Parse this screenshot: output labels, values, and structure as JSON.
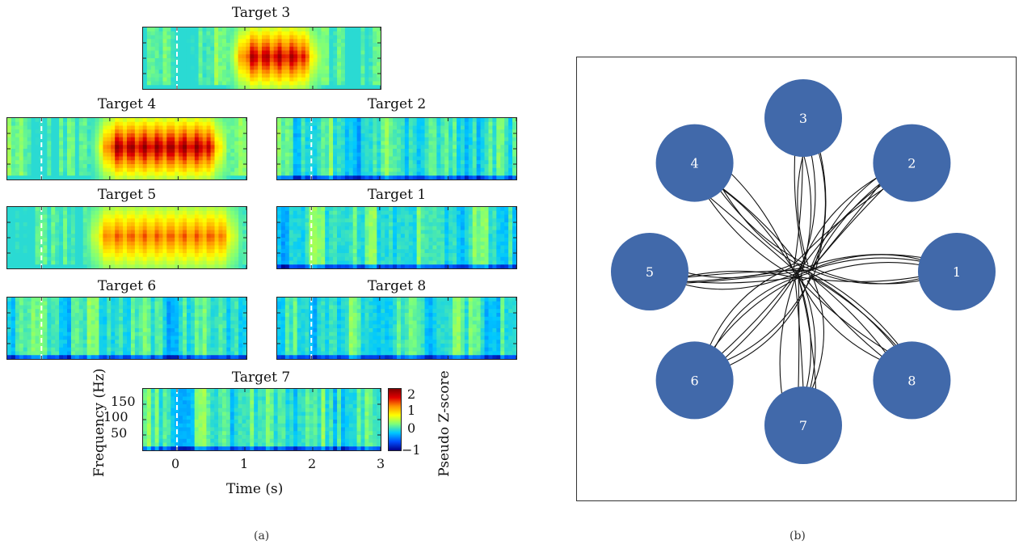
{
  "chart_data": [
    {
      "type": "heatmap",
      "panel": "a",
      "xlabel": "Time (s)",
      "ylabel": "Frequency (Hz)",
      "x_ticks": [
        "0",
        "1",
        "2",
        "3"
      ],
      "y_ticks": [
        "50",
        "100",
        "150"
      ],
      "xlim": [
        -0.5,
        3
      ],
      "ylim": [
        0,
        200
      ],
      "event_line_x": 0,
      "colorbar": {
        "label": "Pseudo Z-score",
        "ticks": [
          "2",
          "1",
          "0",
          "−1"
        ],
        "range": [
          -1,
          2
        ]
      },
      "colormap": [
        "#00008f",
        "#0050ff",
        "#00c8ff",
        "#7dff7a",
        "#ffff00",
        "#ff9400",
        "#e00000",
        "#800000"
      ],
      "subplots": [
        {
          "target": 3,
          "title": "Target 3",
          "active": {
            "t_start": 0.9,
            "t_end": 2.0,
            "peak_z": 1.7
          }
        },
        {
          "target": 4,
          "title": "Target 4",
          "active": {
            "t_start": 0.9,
            "t_end": 2.6,
            "peak_z": 1.8
          }
        },
        {
          "target": 2,
          "title": "Target 2",
          "active": null
        },
        {
          "target": 5,
          "title": "Target 5",
          "active": {
            "t_start": 0.8,
            "t_end": 2.8,
            "peak_z": 1.2
          }
        },
        {
          "target": 1,
          "title": "Target 1",
          "active": null
        },
        {
          "target": 6,
          "title": "Target 6",
          "active": null
        },
        {
          "target": 8,
          "title": "Target 8",
          "active": null
        },
        {
          "target": 7,
          "title": "Target 7",
          "active": null
        }
      ]
    },
    {
      "type": "scatter",
      "panel": "b",
      "description_targets": [
        "1",
        "2",
        "3",
        "4",
        "5",
        "6",
        "7",
        "8"
      ],
      "target_angles_deg": [
        0,
        45,
        90,
        135,
        180,
        225,
        270,
        315
      ],
      "target_color": "#4169aa",
      "trajectory_color": "#111111"
    }
  ],
  "captions": {
    "a": "(a)",
    "b": "(b)"
  }
}
